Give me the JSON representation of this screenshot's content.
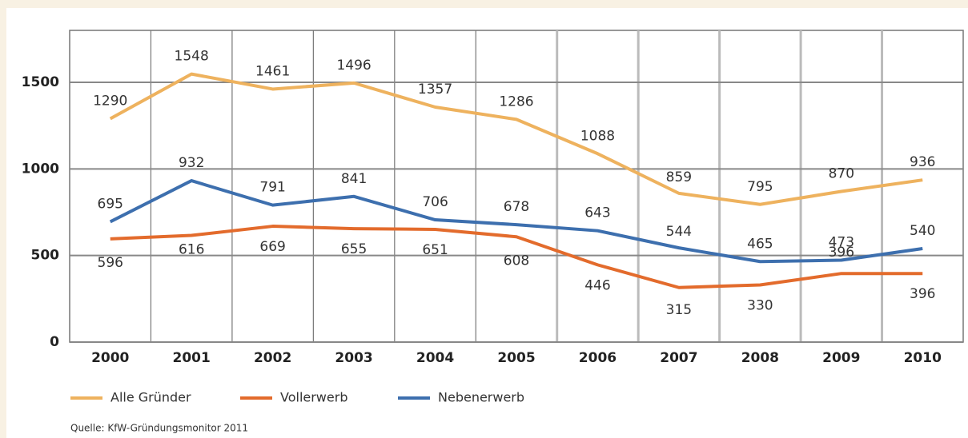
{
  "chart_data": {
    "type": "line",
    "categories": [
      "2000",
      "2001",
      "2002",
      "2003",
      "2004",
      "2005",
      "2006",
      "2007",
      "2008",
      "2009",
      "2010"
    ],
    "series": [
      {
        "name": "Alle Gründer",
        "color": "#eeb25e",
        "values": [
          1290,
          1548,
          1461,
          1496,
          1357,
          1286,
          1088,
          859,
          795,
          870,
          936
        ]
      },
      {
        "name": "Vollerwerb",
        "color": "#e36b2c",
        "values": [
          596,
          616,
          669,
          655,
          651,
          608,
          446,
          315,
          330,
          396,
          396
        ]
      },
      {
        "name": "Nebenerwerb",
        "color": "#3d6fae",
        "values": [
          695,
          932,
          791,
          841,
          706,
          678,
          643,
          544,
          465,
          473,
          540
        ]
      }
    ],
    "ylim": [
      0,
      1800
    ],
    "yticks": [
      0,
      500,
      1000,
      1500
    ],
    "grid": true,
    "note": "Quelle: KfW-Gründungsmonitor 2011"
  }
}
